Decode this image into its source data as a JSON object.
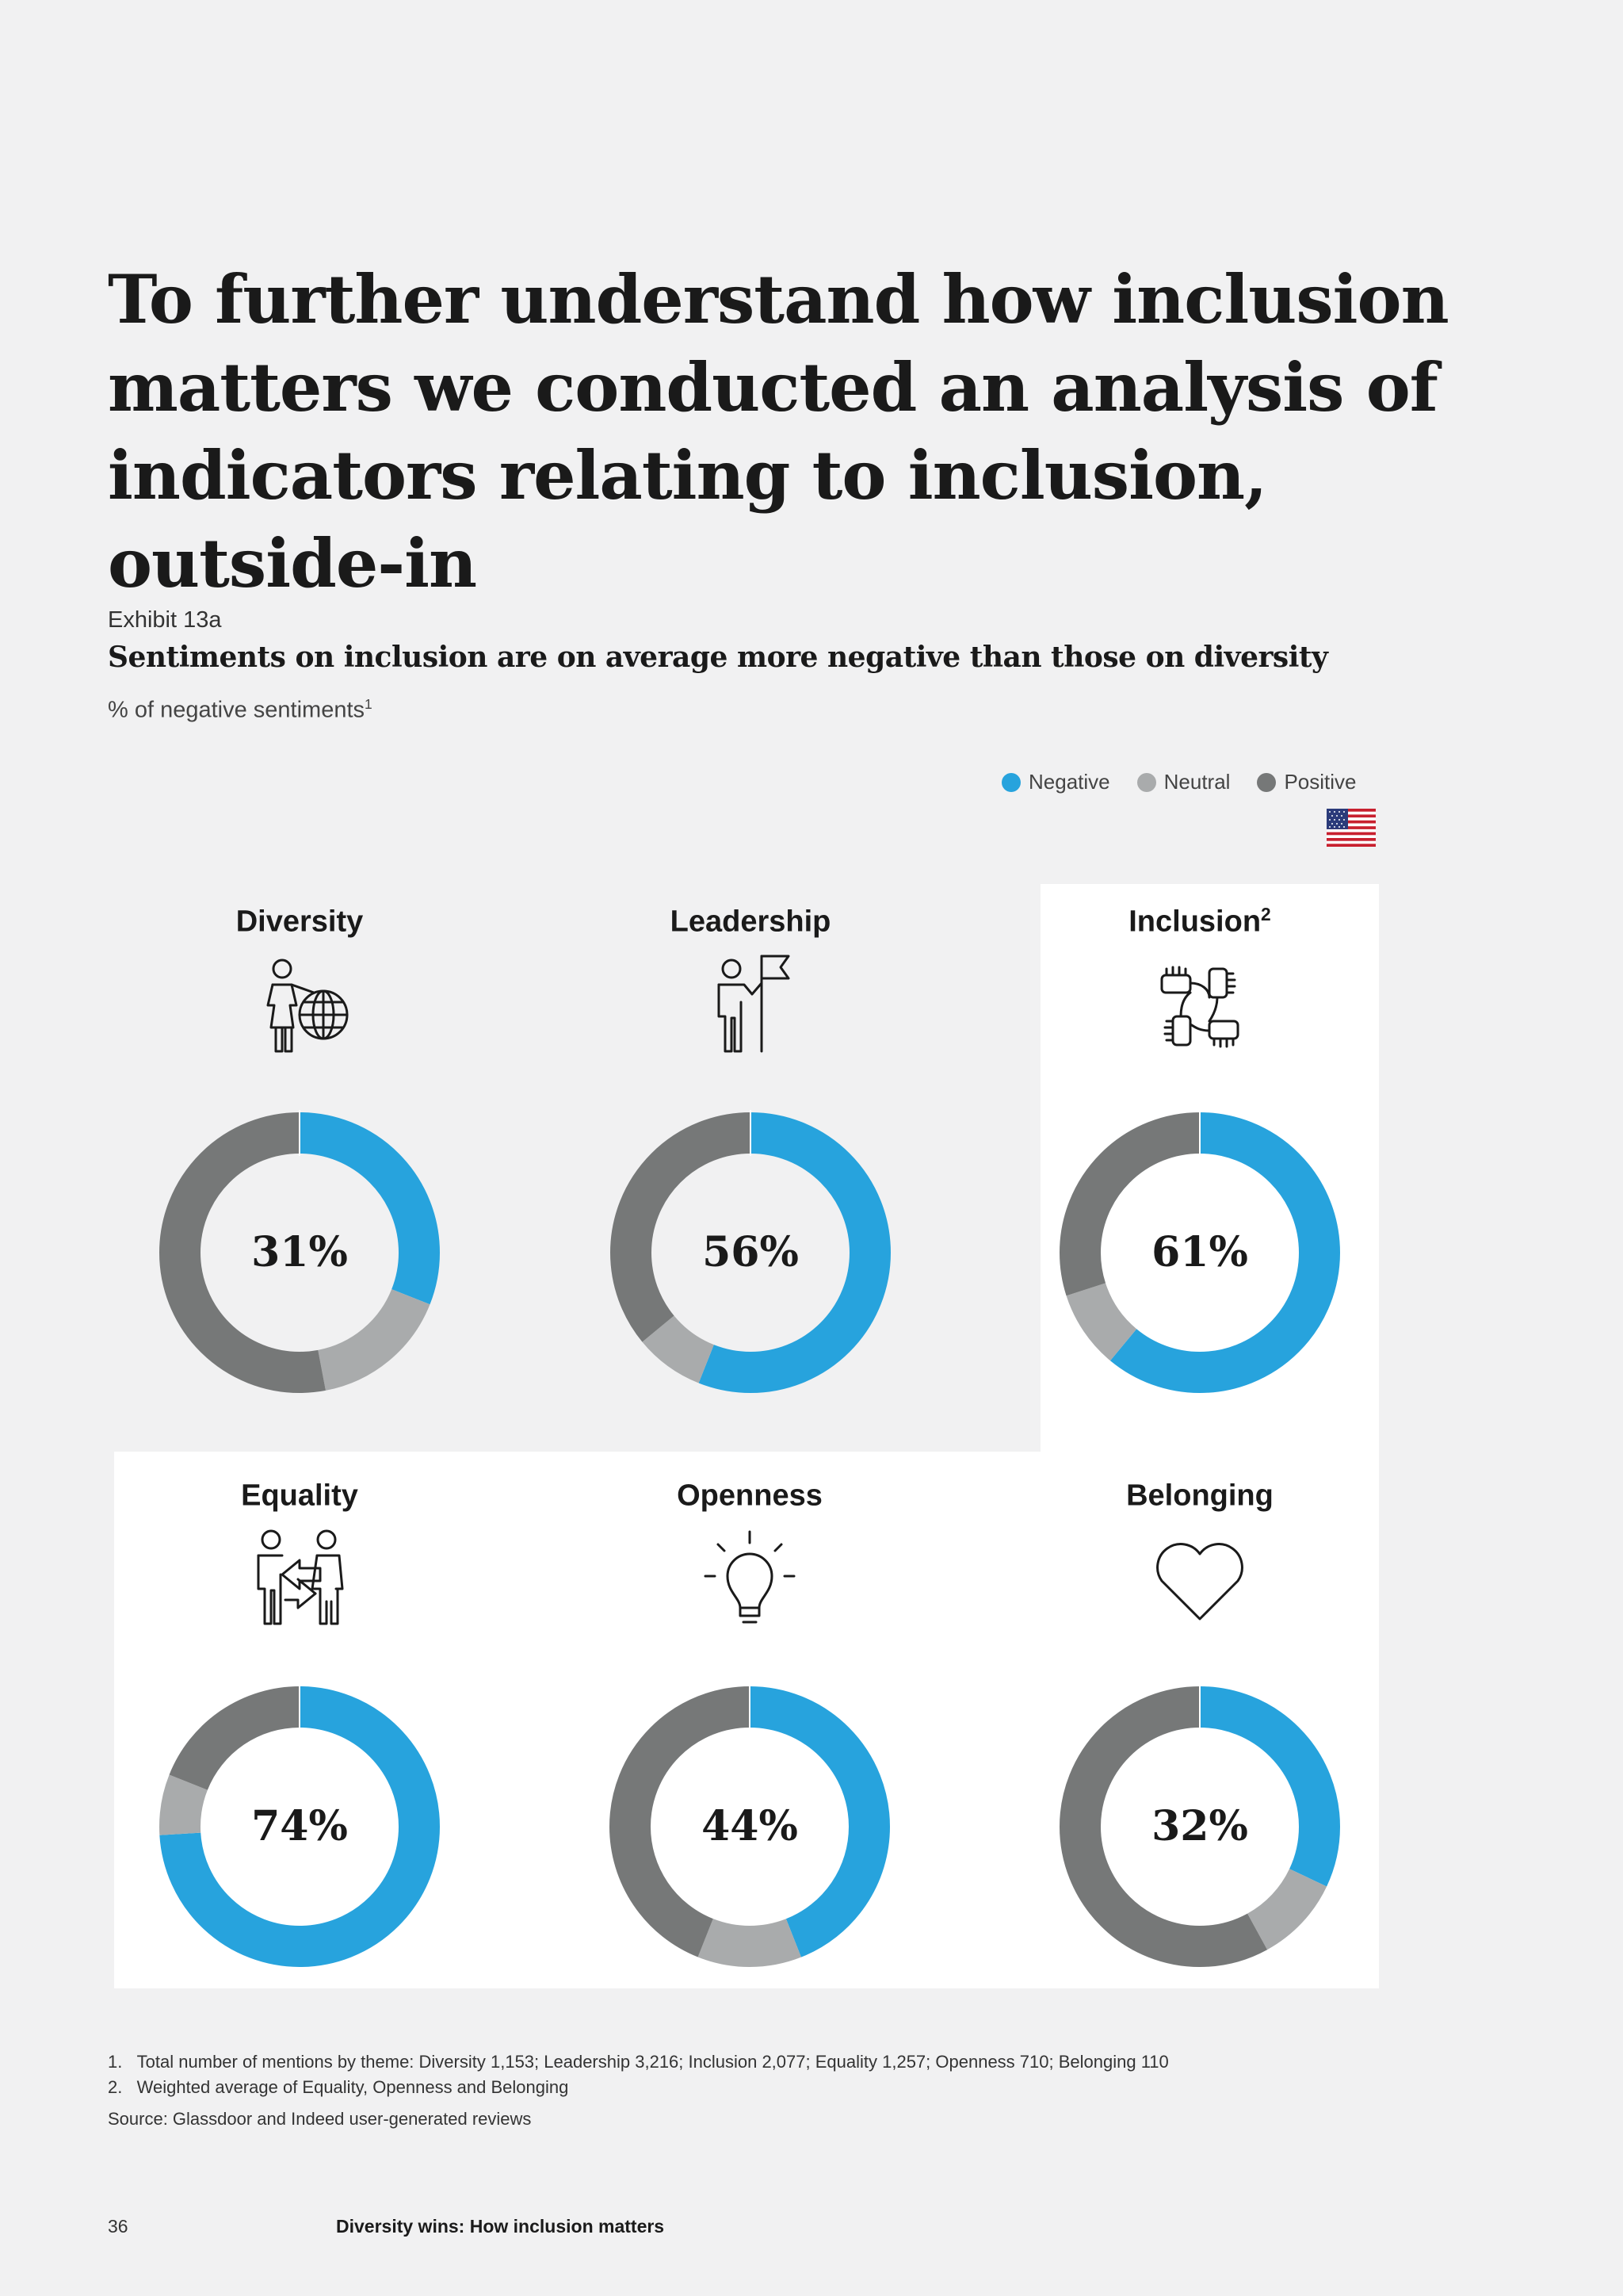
{
  "heading": {
    "line1": "To further understand how inclusion",
    "line2": "matters we conducted an analysis of",
    "line3": "indicators relating to inclusion, outside-in"
  },
  "exhibit": {
    "label": "Exhibit 13a",
    "title": "Sentiments on inclusion are on average more negative than those on diversity",
    "subtitle": "% of negative sentiments",
    "subtitle_sup": "1"
  },
  "legend": [
    {
      "name": "Negative",
      "color": "#27a3dd"
    },
    {
      "name": "Neutral",
      "color": "#a9abac"
    },
    {
      "name": "Positive",
      "color": "#767878"
    }
  ],
  "colors": {
    "negative": "#27a3dd",
    "neutral": "#a9abac",
    "positive": "#767878",
    "panel": "#ffffff"
  },
  "chart_data": [
    {
      "type": "pie",
      "title": "Diversity",
      "title_sup": "",
      "icon": "person-globe-icon",
      "label": "31%",
      "values": {
        "negative": 31,
        "neutral": 16,
        "positive": 53
      }
    },
    {
      "type": "pie",
      "title": "Leadership",
      "title_sup": "",
      "icon": "person-flag-icon",
      "label": "56%",
      "values": {
        "negative": 56,
        "neutral": 8,
        "positive": 36
      }
    },
    {
      "type": "pie",
      "title": "Inclusion",
      "title_sup": "2",
      "icon": "joined-hands-icon",
      "label": "61%",
      "values": {
        "negative": 61,
        "neutral": 9,
        "positive": 30
      }
    },
    {
      "type": "pie",
      "title": "Equality",
      "title_sup": "",
      "icon": "people-exchange-icon",
      "label": "74%",
      "values": {
        "negative": 74,
        "neutral": 7,
        "positive": 19
      }
    },
    {
      "type": "pie",
      "title": "Openness",
      "title_sup": "",
      "icon": "lightbulb-icon",
      "label": "44%",
      "values": {
        "negative": 44,
        "neutral": 12,
        "positive": 44
      }
    },
    {
      "type": "pie",
      "title": "Belonging",
      "title_sup": "",
      "icon": "heart-icon",
      "label": "32%",
      "values": {
        "negative": 32,
        "neutral": 10,
        "positive": 58
      }
    }
  ],
  "footnotes": [
    "1.   Total number of mentions by theme: Diversity 1,153; Leadership 3,216; Inclusion 2,077; Equality 1,257; Openness 710; Belonging 110",
    "2.   Weighted average of Equality, Openness and Belonging"
  ],
  "source": "Source: Glassdoor and Indeed user-generated reviews",
  "footer": {
    "page_number": "36",
    "title": "Diversity wins: How inclusion matters"
  }
}
